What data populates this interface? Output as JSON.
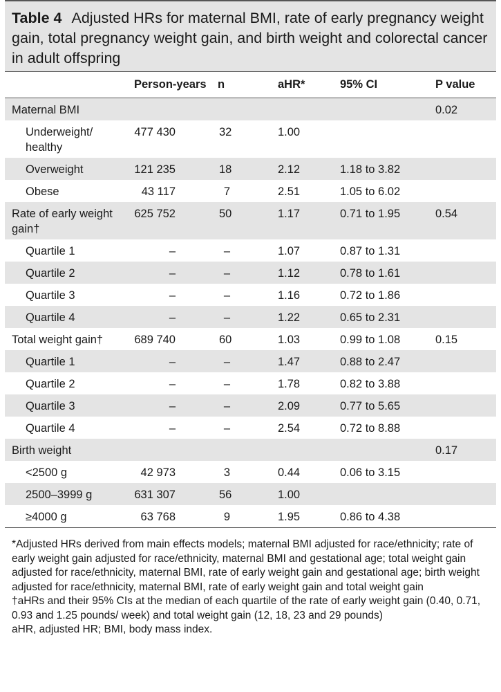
{
  "table": {
    "label": "Table 4",
    "title": "Adjusted HRs for maternal BMI, rate of early pregnancy weight gain, total pregnancy weight gain, and birth weight and colorectal cancer in adult offspring",
    "headers": [
      "",
      "Person-years",
      "n",
      "aHR*",
      "95% CI",
      "P value"
    ],
    "rows": [
      {
        "label": "Maternal BMI",
        "indent": false,
        "py": "",
        "n": "",
        "ahr": "",
        "ci": "",
        "p": "0.02",
        "shade": true,
        "h": 32
      },
      {
        "label": "Underweight/ healthy",
        "indent": true,
        "py": "477 430",
        "n": "32",
        "ahr": "1.00",
        "ci": "",
        "p": "",
        "shade": false,
        "h": 54
      },
      {
        "label": "Overweight",
        "indent": true,
        "py": "121 235",
        "n": "18",
        "ahr": "2.12",
        "ci": "1.18 to 3.82",
        "p": "",
        "shade": true,
        "h": 32
      },
      {
        "label": "Obese",
        "indent": true,
        "py": "43 117",
        "n": "7",
        "ahr": "2.51",
        "ci": "1.05 to 6.02",
        "p": "",
        "shade": false,
        "h": 32
      },
      {
        "label": "Rate of early weight gain†",
        "indent": false,
        "py": "625 752",
        "n": "50",
        "ahr": "1.17",
        "ci": "0.71 to 1.95",
        "p": "0.54",
        "shade": true,
        "h": 54
      },
      {
        "label": "Quartile 1",
        "indent": true,
        "py": "–",
        "n": "–",
        "ahr": "1.07",
        "ci": "0.87 to 1.31",
        "p": "",
        "shade": false,
        "h": 32
      },
      {
        "label": "Quartile 2",
        "indent": true,
        "py": "–",
        "n": "–",
        "ahr": "1.12",
        "ci": "0.78 to 1.61",
        "p": "",
        "shade": true,
        "h": 32
      },
      {
        "label": "Quartile 3",
        "indent": true,
        "py": "–",
        "n": "–",
        "ahr": "1.16",
        "ci": "0.72 to 1.86",
        "p": "",
        "shade": false,
        "h": 32
      },
      {
        "label": "Quartile 4",
        "indent": true,
        "py": "–",
        "n": "–",
        "ahr": "1.22",
        "ci": "0.65 to 2.31",
        "p": "",
        "shade": true,
        "h": 32
      },
      {
        "label": "Total weight gain†",
        "indent": false,
        "py": "689 740",
        "n": "60",
        "ahr": "1.03",
        "ci": "0.99 to 1.08",
        "p": "0.15",
        "shade": false,
        "h": 32
      },
      {
        "label": "Quartile 1",
        "indent": true,
        "py": "–",
        "n": "–",
        "ahr": "1.47",
        "ci": "0.88 to 2.47",
        "p": "",
        "shade": true,
        "h": 32
      },
      {
        "label": "Quartile 2",
        "indent": true,
        "py": "–",
        "n": "–",
        "ahr": "1.78",
        "ci": "0.82 to 3.88",
        "p": "",
        "shade": false,
        "h": 32
      },
      {
        "label": "Quartile 3",
        "indent": true,
        "py": "–",
        "n": "–",
        "ahr": "2.09",
        "ci": "0.77 to 5.65",
        "p": "",
        "shade": true,
        "h": 32
      },
      {
        "label": "Quartile 4",
        "indent": true,
        "py": "–",
        "n": "–",
        "ahr": "2.54",
        "ci": "0.72 to 8.88",
        "p": "",
        "shade": false,
        "h": 32
      },
      {
        "label": "Birth weight",
        "indent": false,
        "py": "",
        "n": "",
        "ahr": "",
        "ci": "",
        "p": "0.17",
        "shade": true,
        "h": 32
      },
      {
        "label": "<2500 g",
        "indent": true,
        "py": "42 973",
        "n": "3",
        "ahr": "0.44",
        "ci": "0.06 to 3.15",
        "p": "",
        "shade": false,
        "h": 32
      },
      {
        "label": "2500–3999 g",
        "indent": true,
        "py": "631 307",
        "n": "56",
        "ahr": "1.00",
        "ci": "",
        "p": "",
        "shade": true,
        "h": 32
      },
      {
        "label": "≥4000 g",
        "indent": true,
        "py": "63 768",
        "n": "9",
        "ahr": "1.95",
        "ci": "0.86 to 4.38",
        "p": "",
        "shade": false,
        "h": 32
      }
    ],
    "footnotes": [
      "*Adjusted HRs derived from main effects models; maternal BMI adjusted for race/ethnicity; rate of early weight gain adjusted for race/ethnicity, maternal BMI and gestational age; total weight gain adjusted for race/ethnicity, maternal BMI, rate of early weight gain and gestational age; birth weight adjusted for race/ethnicity, maternal BMI, rate of early weight gain and total weight gain",
      "†aHRs and their 95% CIs at the median of each quartile of the rate of early weight gain (0.40, 0.71, 0.93 and 1.25 pounds/ week) and total weight gain (12, 18, 23 and 29 pounds)",
      "aHR, adjusted HR; BMI, body mass index."
    ]
  }
}
